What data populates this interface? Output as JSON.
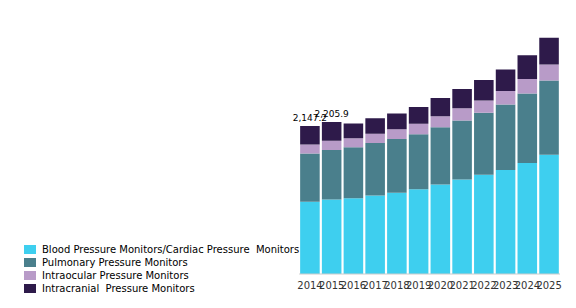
{
  "chart_data": {
    "type": "bar",
    "stacked": true,
    "categories": [
      "2014",
      "2015",
      "2016",
      "2017",
      "2018",
      "2019",
      "2020",
      "2021",
      "2022",
      "2023",
      "2024",
      "2025"
    ],
    "series": [
      {
        "name": "Blood Pressure Monitors/Cardiac Pressure  Monitors",
        "color": "#3ECFEF",
        "values": [
          1050,
          1080,
          1100,
          1140,
          1180,
          1230,
          1300,
          1370,
          1440,
          1510,
          1610,
          1730
        ]
      },
      {
        "name": "Pulmonary Pressure Monitors",
        "color": "#4A7F8C",
        "values": [
          700,
          720,
          740,
          760,
          780,
          800,
          830,
          860,
          900,
          950,
          1010,
          1080
        ]
      },
      {
        "name": "Intraocular Pressure Monitors",
        "color": "#B89BC8",
        "values": [
          130,
          135,
          130,
          135,
          140,
          150,
          160,
          175,
          180,
          195,
          210,
          230
        ]
      },
      {
        "name": "Intracranial  Pressure Monitors",
        "color": "#2E1A4A",
        "values": [
          267,
          271,
          215,
          225,
          230,
          245,
          265,
          280,
          295,
          315,
          345,
          390
        ]
      }
    ],
    "annotations": [
      {
        "x": "2014",
        "text": "2,147.2"
      },
      {
        "x": "2015",
        "text": "2,205.9"
      }
    ],
    "ylim": [
      0,
      3600
    ],
    "tick_labels": "x",
    "grid": false,
    "legend": "bottom"
  }
}
